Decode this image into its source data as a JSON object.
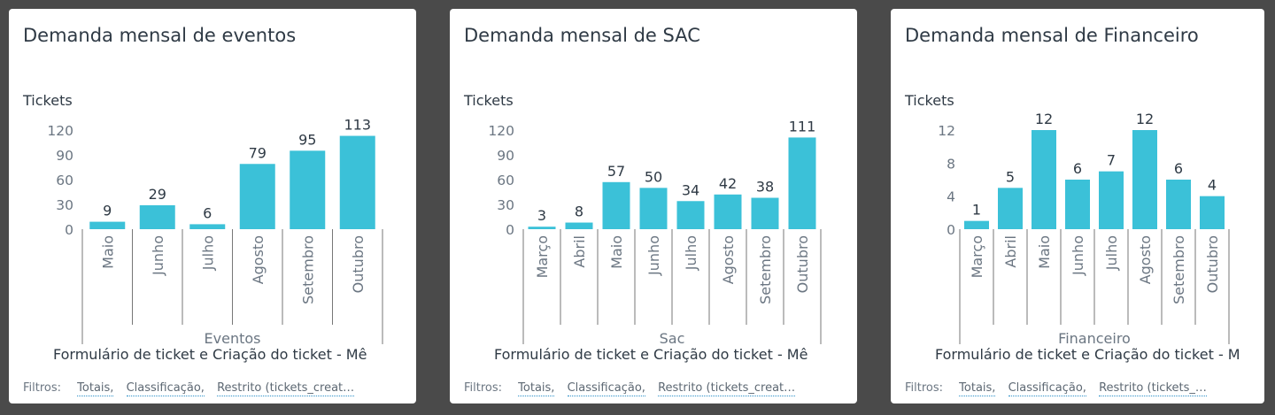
{
  "colors": {
    "bar": "#3bc1d8",
    "text": "#2f3a45",
    "axis": "#6b7682",
    "divider": "#777777"
  },
  "panels": [
    {
      "title": "Demanda mensal de eventos",
      "filters": {
        "label": "Filtros:",
        "items": [
          "Totais,",
          "Classificação,",
          "Restrito (tickets_creat…"
        ]
      }
    },
    {
      "title": "Demanda mensal de SAC",
      "filters": {
        "label": "Filtros:",
        "items": [
          "Totais,",
          "Classificação,",
          "Restrito (tickets_creat…"
        ]
      }
    },
    {
      "title": "Demanda mensal de Financeiro",
      "filters": {
        "label": "Filtros:",
        "items": [
          "Totais,",
          "Classificação,",
          "Restrito (tickets_…"
        ]
      }
    }
  ],
  "chart_data": [
    {
      "type": "bar",
      "ylabel": "Tickets",
      "ylim": [
        0,
        120
      ],
      "yticks": [
        0,
        30,
        60,
        90,
        120
      ],
      "categories": [
        "Maio",
        "Junho",
        "Julho",
        "Agosto",
        "Setembro",
        "Outubro"
      ],
      "values": [
        9,
        29,
        6,
        79,
        95,
        113
      ],
      "group_label": "Eventos",
      "xlabel": "Formulário de ticket e Criação do ticket - Mê"
    },
    {
      "type": "bar",
      "ylabel": "Tickets",
      "ylim": [
        0,
        120
      ],
      "yticks": [
        0,
        30,
        60,
        90,
        120
      ],
      "categories": [
        "Março",
        "Abril",
        "Maio",
        "Junho",
        "Julho",
        "Agosto",
        "Setembro",
        "Outubro"
      ],
      "values": [
        3,
        8,
        57,
        50,
        34,
        42,
        38,
        111
      ],
      "group_label": "Sac",
      "xlabel": "Formulário de ticket e Criação do ticket - Mê"
    },
    {
      "type": "bar",
      "ylabel": "Tickets",
      "ylim": [
        0,
        12
      ],
      "yticks": [
        0,
        4,
        8,
        12
      ],
      "categories": [
        "Março",
        "Abril",
        "Maio",
        "Junho",
        "Julho",
        "Agosto",
        "Setembro",
        "Outubro"
      ],
      "values": [
        1,
        5,
        12,
        6,
        7,
        12,
        6,
        4
      ],
      "group_label": "Financeiro",
      "xlabel": "Formulário de ticket e Criação do ticket - M"
    }
  ]
}
